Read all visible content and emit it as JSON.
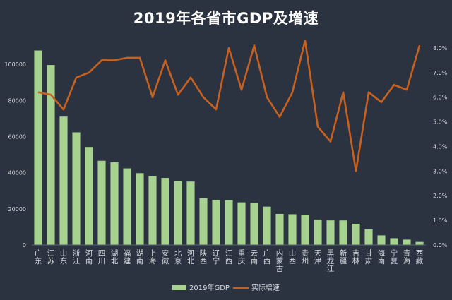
{
  "chart_data": {
    "type": "bar+line",
    "title": "2019年各省市GDP及增速",
    "categories": [
      "广东",
      "江苏",
      "山东",
      "浙江",
      "河南",
      "四川",
      "湖北",
      "福建",
      "湖南",
      "上海",
      "安徽",
      "北京",
      "河北",
      "陕西",
      "辽宁",
      "江西",
      "重庆",
      "云南",
      "广西",
      "内蒙古",
      "山西",
      "贵州",
      "天津",
      "黑龙江",
      "新疆",
      "吉林",
      "甘肃",
      "海南",
      "宁夏",
      "青海",
      "西藏"
    ],
    "series": [
      {
        "name": "2019年GDP",
        "type": "bar",
        "axis": "left",
        "color": "#a6d18f",
        "values": [
          107671,
          99632,
          71068,
          62352,
          54259,
          46616,
          45828,
          42395,
          39752,
          38155,
          37114,
          35371,
          35105,
          25793,
          24909,
          24758,
          23606,
          23224,
          21237,
          17213,
          17027,
          16769,
          14104,
          13613,
          13597,
          11727,
          8718,
          5309,
          3748,
          2966,
          1698
        ]
      },
      {
        "name": "实际增速",
        "type": "line",
        "axis": "right",
        "color": "#c8611f",
        "values": [
          6.2,
          6.1,
          5.5,
          6.8,
          7.0,
          7.5,
          7.5,
          7.6,
          7.6,
          6.0,
          7.5,
          6.1,
          6.8,
          6.0,
          5.5,
          8.0,
          6.3,
          8.1,
          6.0,
          5.2,
          6.2,
          8.3,
          4.8,
          4.2,
          6.2,
          3.0,
          6.2,
          5.8,
          6.5,
          6.3,
          8.1
        ]
      }
    ],
    "y_left": {
      "ylim": [
        0,
        120000
      ],
      "ticks": [
        0,
        20000,
        40000,
        60000,
        80000,
        100000
      ]
    },
    "y_right": {
      "ylim": [
        0,
        8.8
      ],
      "ticks": [
        "0.0%",
        "1.0%",
        "2.0%",
        "3.0%",
        "4.0%",
        "5.0%",
        "6.0%",
        "7.0%",
        "8.0%"
      ]
    },
    "grid": false,
    "legend": "bottom-center"
  }
}
